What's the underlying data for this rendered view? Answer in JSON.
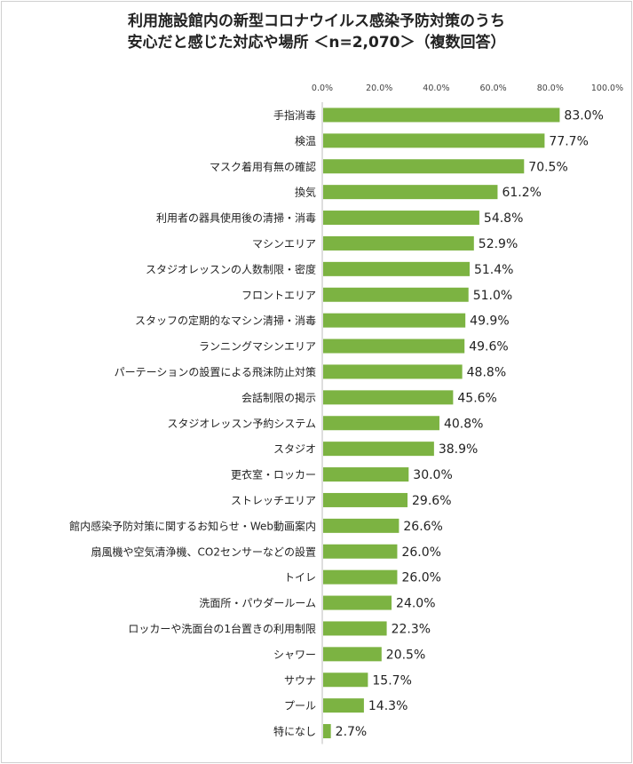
{
  "chart_data": {
    "type": "bar",
    "orientation": "horizontal",
    "title_line1": "利用施設館内の新型コロナウイルス感染予防対策のうち",
    "title_line2": "安心だと感じた対応や場所 ＜n=2,070＞（複数回答）",
    "xlim": [
      0,
      100
    ],
    "xticks": [
      "0.0%",
      "20.0%",
      "40.0%",
      "60.0%",
      "80.0%",
      "100.0%"
    ],
    "bar_color": "#7cb342",
    "categories": [
      "手指消毒",
      "検温",
      "マスク着用有無の確認",
      "換気",
      "利用者の器具使用後の清掃・消毒",
      "マシンエリア",
      "スタジオレッスンの人数制限・密度",
      "フロントエリア",
      "スタッフの定期的なマシン清掃・消毒",
      "ランニングマシンエリア",
      "パーテーションの設置による飛沫防止対策",
      "会話制限の掲示",
      "スタジオレッスン予約システム",
      "スタジオ",
      "更衣室・ロッカー",
      "ストレッチエリア",
      "館内感染予防対策に関するお知らせ・Web動画案内",
      "扇風機や空気清浄機、CO2センサーなどの設置",
      "トイレ",
      "洗面所・パウダールーム",
      "ロッカーや洗面台の1台置きの利用制限",
      "シャワー",
      "サウナ",
      "プール",
      "特になし"
    ],
    "values": [
      83.0,
      77.7,
      70.5,
      61.2,
      54.8,
      52.9,
      51.4,
      51.0,
      49.9,
      49.6,
      48.8,
      45.6,
      40.8,
      38.9,
      30.0,
      29.6,
      26.6,
      26.0,
      26.0,
      24.0,
      22.3,
      20.5,
      15.7,
      14.3,
      2.7
    ],
    "value_labels": [
      "83.0%",
      "77.7%",
      "70.5%",
      "61.2%",
      "54.8%",
      "52.9%",
      "51.4%",
      "51.0%",
      "49.9%",
      "49.6%",
      "48.8%",
      "45.6%",
      "40.8%",
      "38.9%",
      "30.0%",
      "29.6%",
      "26.6%",
      "26.0%",
      "26.0%",
      "24.0%",
      "22.3%",
      "20.5%",
      "15.7%",
      "14.3%",
      "2.7%"
    ]
  }
}
